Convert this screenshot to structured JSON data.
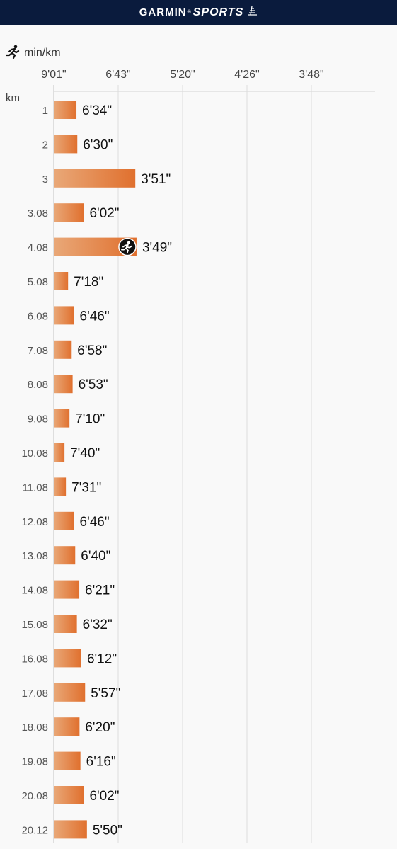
{
  "header": {
    "brand": "GARMIN",
    "brand_mark": "®",
    "product": "SPORTS",
    "background_color": "#0a1b3d",
    "text_color": "#ffffff"
  },
  "chart_data": {
    "type": "bar",
    "orientation": "horizontal",
    "pace_unit_label": "min/km",
    "category_axis_label": "km",
    "x_tick_labels": [
      "9'01\"",
      "6'43\"",
      "5'20\"",
      "4'26\"",
      "3'48\""
    ],
    "categories": [
      "1",
      "2",
      "3",
      "3.08",
      "4.08",
      "5.08",
      "6.08",
      "7.08",
      "8.08",
      "9.08",
      "10.08",
      "11.08",
      "12.08",
      "13.08",
      "14.08",
      "15.08",
      "16.08",
      "17.08",
      "18.08",
      "19.08",
      "20.08",
      "20.12"
    ],
    "value_labels": [
      "6'34\"",
      "6'30\"",
      "3'51\"",
      "6'02\"",
      "3'49\"",
      "7'18\"",
      "6'46\"",
      "6'58\"",
      "6'53\"",
      "7'10\"",
      "7'40\"",
      "7'31\"",
      "6'46\"",
      "6'40\"",
      "6'21\"",
      "6'32\"",
      "6'12\"",
      "5'57\"",
      "6'20\"",
      "6'16\"",
      "6'02\"",
      "5'50\""
    ],
    "values_seconds_per_km": [
      394,
      390,
      231,
      362,
      229,
      438,
      406,
      418,
      413,
      430,
      460,
      451,
      406,
      400,
      381,
      392,
      372,
      357,
      380,
      376,
      362,
      350
    ],
    "best_pace_index": 4,
    "bar_color_start": "#e9a878",
    "bar_color_end": "#e0702e",
    "grid": true
  }
}
